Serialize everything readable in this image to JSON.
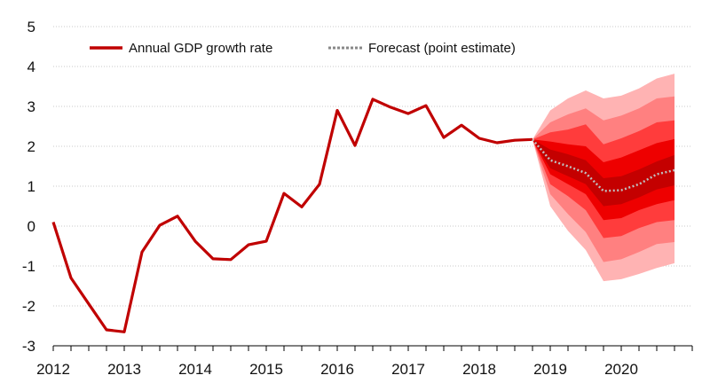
{
  "chart_data": {
    "type": "line",
    "title": "",
    "xlabel": "",
    "ylabel": "",
    "ylim": [
      -3,
      5
    ],
    "yticks": [
      5,
      4,
      3,
      2,
      1,
      0,
      -1,
      -2,
      -3
    ],
    "ytick_labels": [
      "5",
      "4",
      "3",
      "2",
      "1",
      "0",
      "-1",
      "-2",
      "-3"
    ],
    "xlim": [
      2012,
      2021
    ],
    "xtick_labels": [
      "2012",
      "2013",
      "2014",
      "2015",
      "2016",
      "2017",
      "2018",
      "2019",
      "2020"
    ],
    "grid": "horizontal dotted",
    "legend_position": "top",
    "colors": {
      "actual": "#c00000",
      "forecast": "#bfbfbf",
      "fan_outer": "#ffb3b3",
      "fan_mid_outer": "#ff8080",
      "fan_mid": "#ff3c3c",
      "fan_inner": "#ee0000",
      "fan_core": "#c40000"
    },
    "series": [
      {
        "name": "Annual GDP growth rate",
        "style": "solid",
        "x": [
          2012.0,
          2012.25,
          2012.5,
          2012.75,
          2013.0,
          2013.25,
          2013.5,
          2013.75,
          2014.0,
          2014.25,
          2014.5,
          2014.75,
          2015.0,
          2015.25,
          2015.5,
          2015.75,
          2016.0,
          2016.25,
          2016.5,
          2016.75,
          2017.0,
          2017.25,
          2017.5,
          2017.75,
          2018.0,
          2018.25,
          2018.5,
          2018.75
        ],
        "values": [
          0.1,
          -1.3,
          -1.95,
          -2.6,
          -2.65,
          -0.65,
          0.02,
          0.25,
          -0.38,
          -0.82,
          -0.84,
          -0.47,
          -0.38,
          0.82,
          0.48,
          1.05,
          2.9,
          2.02,
          3.18,
          2.98,
          2.82,
          3.02,
          2.22,
          2.53,
          2.2,
          2.09,
          2.15,
          2.17
        ]
      },
      {
        "name": "Forecast (point estimate)",
        "style": "dotted",
        "x": [
          2018.75,
          2019.0,
          2019.25,
          2019.5,
          2019.75,
          2020.0,
          2020.25,
          2020.5,
          2020.75
        ],
        "values": [
          2.17,
          1.65,
          1.5,
          1.33,
          0.88,
          0.9,
          1.05,
          1.3,
          1.4
        ]
      }
    ],
    "fan_bands": {
      "x": [
        2018.75,
        2019.0,
        2019.25,
        2019.5,
        2019.75,
        2020.0,
        2020.25,
        2020.5,
        2020.75
      ],
      "bands": [
        {
          "level": "outer",
          "upper": [
            2.17,
            2.9,
            3.2,
            3.4,
            3.2,
            3.27,
            3.45,
            3.7,
            3.82
          ],
          "lower": [
            2.17,
            0.5,
            -0.12,
            -0.6,
            -1.38,
            -1.33,
            -1.2,
            -1.05,
            -0.93
          ]
        },
        {
          "level": "mid-outer",
          "upper": [
            2.17,
            2.6,
            2.8,
            2.95,
            2.65,
            2.77,
            2.95,
            3.2,
            3.25
          ],
          "lower": [
            2.17,
            0.8,
            0.3,
            -0.15,
            -0.9,
            -0.83,
            -0.65,
            -0.45,
            -0.4
          ]
        },
        {
          "level": "mid",
          "upper": [
            2.17,
            2.35,
            2.42,
            2.55,
            2.05,
            2.2,
            2.38,
            2.6,
            2.65
          ],
          "lower": [
            2.17,
            1.05,
            0.75,
            0.4,
            -0.3,
            -0.25,
            -0.05,
            0.1,
            0.15
          ]
        },
        {
          "level": "inner",
          "upper": [
            2.17,
            2.12,
            2.05,
            2.0,
            1.6,
            1.72,
            1.9,
            2.08,
            2.18
          ],
          "lower": [
            2.17,
            1.3,
            1.05,
            0.8,
            0.15,
            0.2,
            0.4,
            0.55,
            0.65
          ]
        },
        {
          "level": "core",
          "upper": [
            2.17,
            1.92,
            1.8,
            1.65,
            1.2,
            1.25,
            1.42,
            1.62,
            1.78
          ],
          "lower": [
            2.17,
            1.45,
            1.25,
            1.05,
            0.5,
            0.55,
            0.72,
            0.92,
            1.02
          ]
        }
      ]
    }
  }
}
